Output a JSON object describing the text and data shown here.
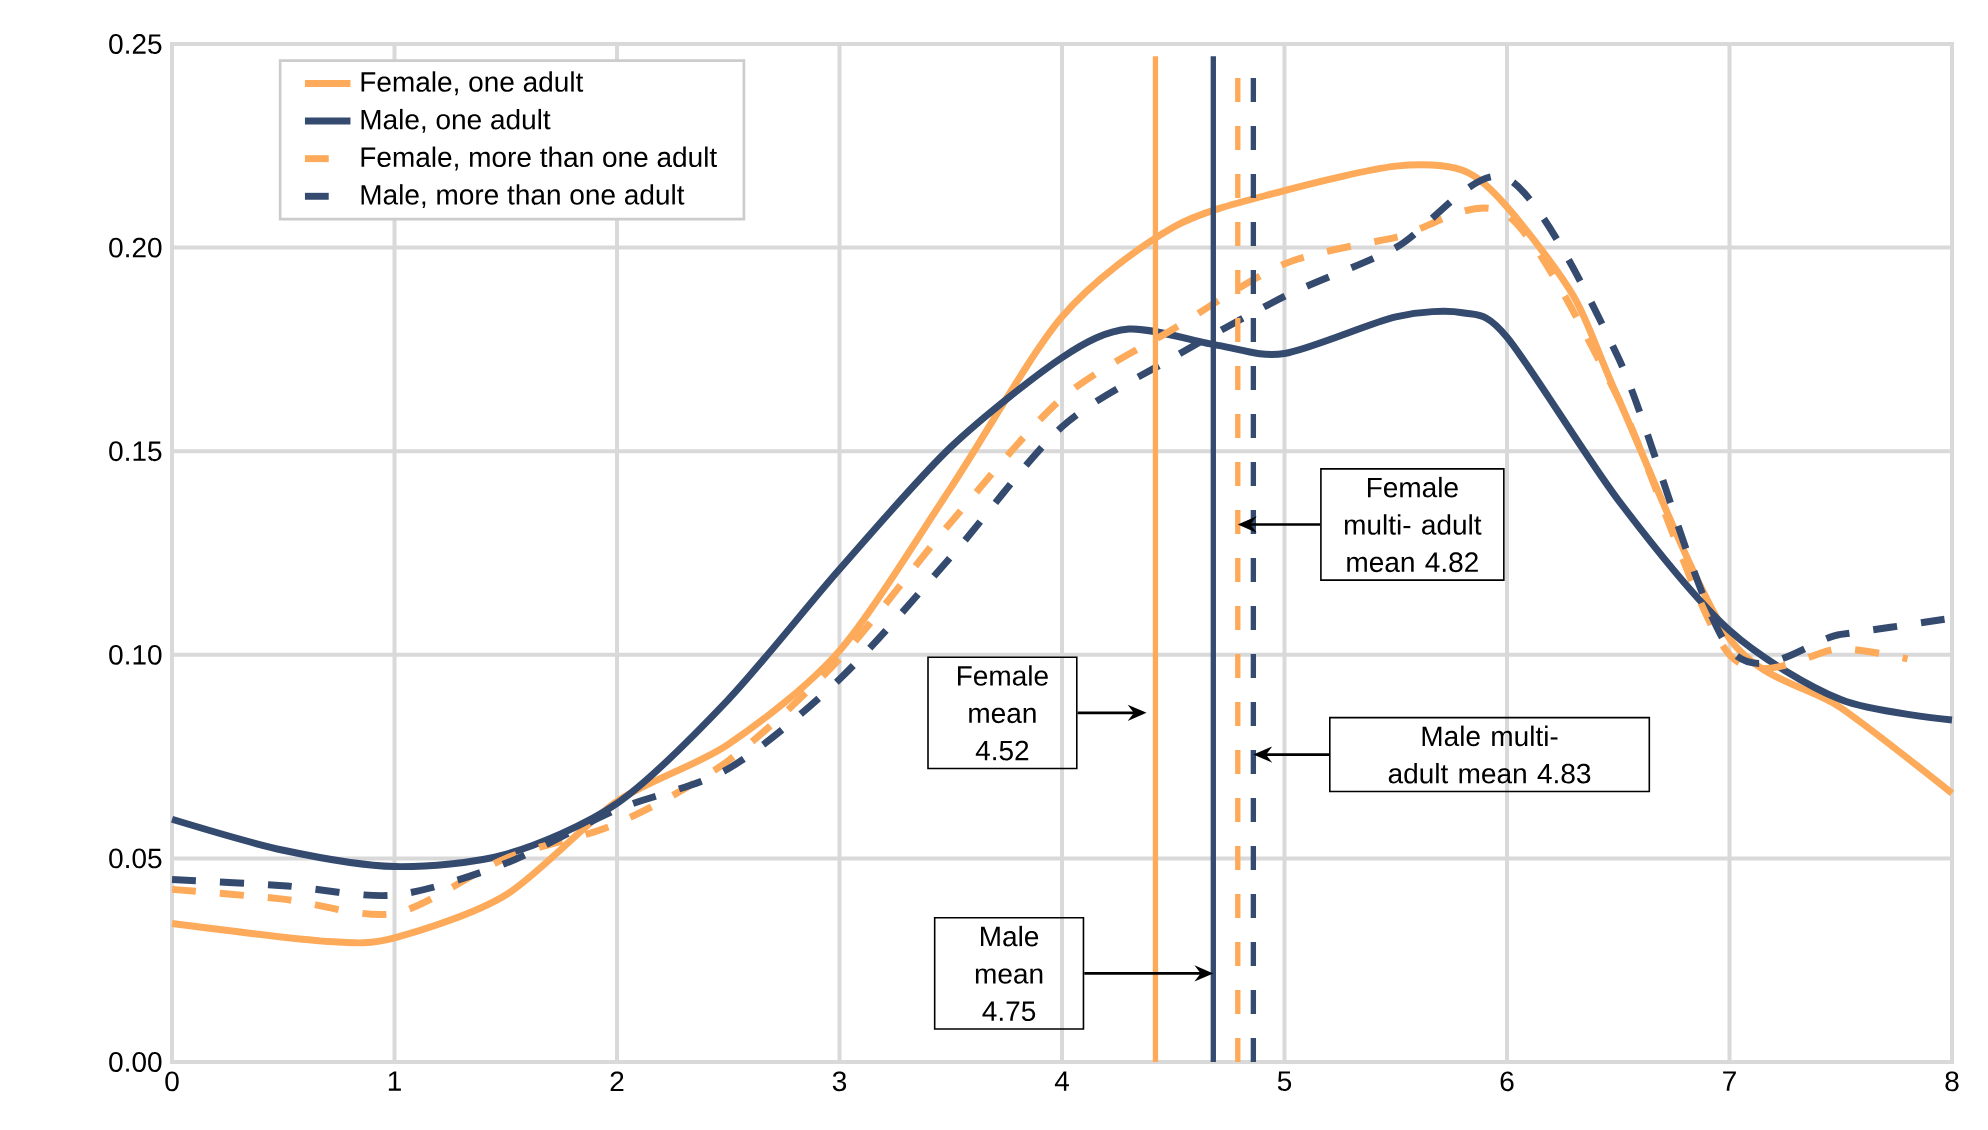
{
  "chart_data": {
    "type": "line",
    "xlim": [
      0,
      8
    ],
    "ylim": [
      0,
      0.25
    ],
    "xticks": [
      0,
      1,
      2,
      3,
      4,
      5,
      6,
      7,
      8
    ],
    "yticks": [
      {
        "value": 0,
        "label": "0.00"
      },
      {
        "value": 0.05,
        "label": "0.05"
      },
      {
        "value": 0.1,
        "label": "0.10"
      },
      {
        "value": 0.15,
        "label": "0.15"
      },
      {
        "value": 0.2,
        "label": "0.20"
      },
      {
        "value": 0.25,
        "label": "0.25"
      }
    ],
    "grid": true,
    "legend": "top left",
    "marker": "none",
    "series": [
      {
        "name": "Female, one adult",
        "color": "#fdaa5a",
        "line_style": "solid",
        "x": [
          0,
          0.7,
          1,
          1.5,
          2,
          2.5,
          3,
          3.5,
          4,
          4.5,
          5,
          5.5,
          5.8,
          6,
          6.3,
          6.5,
          7,
          7.5,
          8
        ],
        "values": [
          0.034,
          0.0296,
          0.0305,
          0.041,
          0.064,
          0.078,
          0.101,
          0.141,
          0.183,
          0.205,
          0.214,
          0.22,
          0.219,
          0.21,
          0.188,
          0.163,
          0.104,
          0.087,
          0.066
        ]
      },
      {
        "name": "Male, one adult",
        "color": "#344a6e",
        "line_style": "solid",
        "x": [
          0,
          0.5,
          1,
          1.5,
          2,
          2.5,
          3,
          3.5,
          4,
          4.3,
          4.7,
          5,
          5.5,
          5.8,
          6,
          6.5,
          7,
          7.5,
          8
        ],
        "values": [
          0.0596,
          0.052,
          0.048,
          0.051,
          0.0635,
          0.089,
          0.121,
          0.151,
          0.173,
          0.18,
          0.176,
          0.174,
          0.183,
          0.184,
          0.178,
          0.138,
          0.106,
          0.089,
          0.084
        ]
      },
      {
        "name": "Female, more than one adult",
        "color": "#fdaa5a",
        "line_style": "dashed",
        "x": [
          0,
          0.5,
          1,
          1.5,
          2,
          2.5,
          3,
          3.5,
          4,
          4.5,
          5,
          5.5,
          6,
          6.5,
          7,
          7.5,
          7.8
        ],
        "values": [
          0.0424,
          0.04,
          0.0365,
          0.05,
          0.0586,
          0.074,
          0.099,
          0.1325,
          0.163,
          0.18,
          0.196,
          0.2025,
          0.208,
          0.163,
          0.1,
          0.1015,
          0.099
        ]
      },
      {
        "name": "Male, more than one adult",
        "color": "#344a6e",
        "line_style": "dashed",
        "x": [
          0,
          0.5,
          1,
          1.5,
          2,
          2.5,
          3,
          3.5,
          4,
          4.5,
          5,
          5.5,
          6,
          6.5,
          7,
          7.5,
          8
        ],
        "values": [
          0.0448,
          0.0433,
          0.041,
          0.0488,
          0.062,
          0.072,
          0.094,
          0.124,
          0.156,
          0.173,
          0.188,
          0.2,
          0.217,
          0.173,
          0.1015,
          0.105,
          0.109
        ]
      }
    ],
    "ref_lines": [
      {
        "axis": "x",
        "value": 4.42,
        "color": "#fdaa5a",
        "line_style": "solid"
      },
      {
        "axis": "x",
        "value": 4.68,
        "color": "#344a6e",
        "line_style": "solid"
      },
      {
        "axis": "x",
        "value": 4.79,
        "color": "#fdaa5a",
        "line_style": "dashed"
      },
      {
        "axis": "x",
        "value": 4.86,
        "color": "#344a6e",
        "line_style": "dashed"
      }
    ],
    "annotations": [
      "Female mean 4.52",
      "Male mean 4.75",
      "Female multi- adult mean 4.82",
      "Male multi- adult mean 4.83"
    ]
  }
}
